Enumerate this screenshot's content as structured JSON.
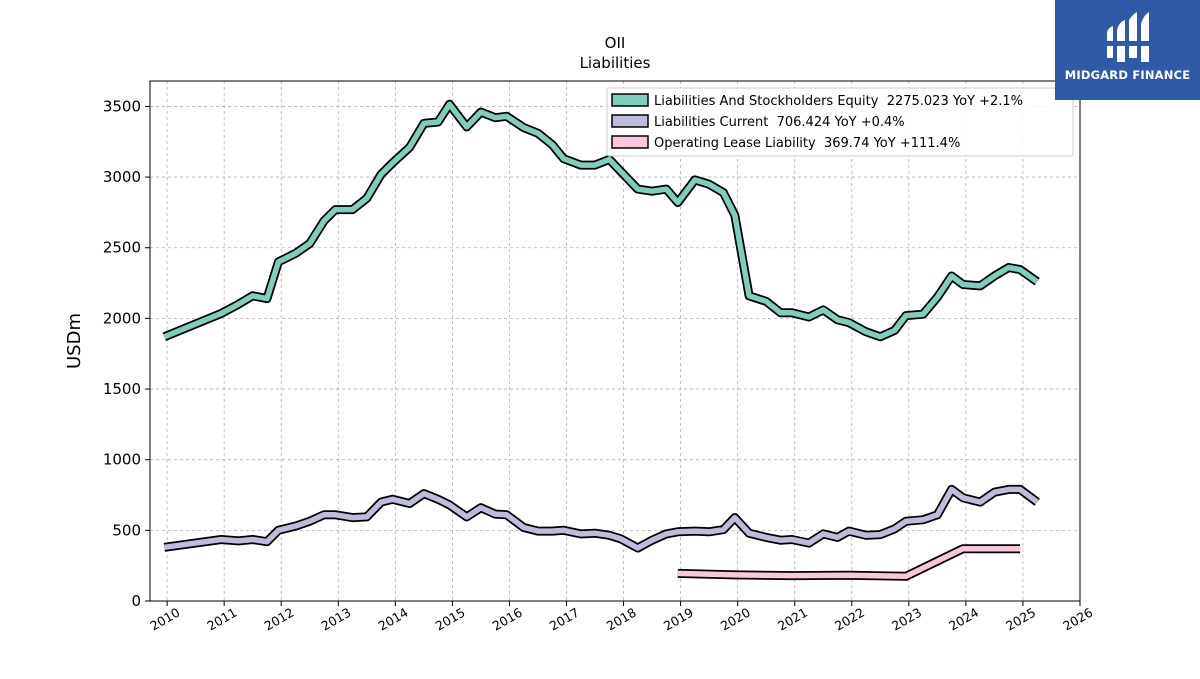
{
  "brand": {
    "name": "MIDGARD FINANCE",
    "logo_icon": "midgard-logo-icon",
    "logo_bg": "#2e5aa8"
  },
  "chart_data": {
    "type": "line",
    "title": "OII",
    "subtitle": "Liabilities",
    "ylabel": "USDm",
    "xlabel": "",
    "xlim": [
      2009.7,
      2026.0
    ],
    "ylim": [
      0,
      3680
    ],
    "x_ticks": [
      "2010",
      "2011",
      "2012",
      "2013",
      "2014",
      "2015",
      "2016",
      "2017",
      "2018",
      "2019",
      "2020",
      "2021",
      "2022",
      "2023",
      "2024",
      "2025",
      "2026"
    ],
    "y_ticks": [
      "0",
      "500",
      "1000",
      "1500",
      "2000",
      "2500",
      "3000",
      "3500"
    ],
    "grid": true,
    "legend_position": "top-right",
    "series": [
      {
        "name": "Liabilities And Stockholders Equity",
        "legend": "Liabilities And Stockholders Equity  2275.023 YoY +2.1%",
        "color": "#7fcdbb",
        "x": [
          2009.95,
          2010.95,
          2011.25,
          2011.5,
          2011.75,
          2011.95,
          2012.25,
          2012.5,
          2012.75,
          2012.95,
          2013.25,
          2013.5,
          2013.75,
          2013.95,
          2014.25,
          2014.5,
          2014.75,
          2014.95,
          2015.25,
          2015.5,
          2015.75,
          2015.95,
          2016.25,
          2016.5,
          2016.75,
          2016.95,
          2017.25,
          2017.5,
          2017.75,
          2017.95,
          2018.25,
          2018.5,
          2018.75,
          2018.95,
          2019.25,
          2019.5,
          2019.75,
          2019.95,
          2020.2,
          2020.5,
          2020.75,
          2020.95,
          2021.25,
          2021.5,
          2021.75,
          2021.95,
          2022.25,
          2022.5,
          2022.75,
          2022.95,
          2023.25,
          2023.5,
          2023.75,
          2023.95,
          2024.25,
          2024.5,
          2024.75,
          2024.95,
          2025.25
        ],
        "values": [
          1870,
          2035,
          2100,
          2160,
          2140,
          2400,
          2460,
          2530,
          2690,
          2770,
          2770,
          2850,
          3020,
          3100,
          3210,
          3380,
          3390,
          3515,
          3355,
          3460,
          3420,
          3430,
          3350,
          3310,
          3230,
          3130,
          3085,
          3085,
          3125,
          3040,
          2915,
          2900,
          2915,
          2820,
          2980,
          2950,
          2890,
          2730,
          2160,
          2120,
          2040,
          2040,
          2010,
          2060,
          1990,
          1970,
          1905,
          1870,
          1915,
          2020,
          2030,
          2150,
          2300,
          2240,
          2230,
          2300,
          2360,
          2345,
          2260
        ]
      },
      {
        "name": "Liabilities Current",
        "legend": "Liabilities Current  706.424 YoY +0.4%",
        "color": "#bcbddc",
        "x": [
          2009.95,
          2010.95,
          2011.25,
          2011.5,
          2011.75,
          2011.95,
          2012.25,
          2012.5,
          2012.75,
          2012.95,
          2013.25,
          2013.5,
          2013.75,
          2013.95,
          2014.25,
          2014.5,
          2014.75,
          2014.95,
          2015.25,
          2015.5,
          2015.75,
          2015.95,
          2016.25,
          2016.5,
          2016.75,
          2016.95,
          2017.25,
          2017.5,
          2017.75,
          2017.95,
          2018.25,
          2018.5,
          2018.75,
          2018.95,
          2019.25,
          2019.5,
          2019.75,
          2019.95,
          2020.2,
          2020.5,
          2020.75,
          2020.95,
          2021.25,
          2021.5,
          2021.75,
          2021.95,
          2022.25,
          2022.5,
          2022.75,
          2022.95,
          2023.25,
          2023.5,
          2023.75,
          2023.95,
          2024.25,
          2024.5,
          2024.75,
          2024.95,
          2025.25
        ],
        "values": [
          380,
          435,
          425,
          435,
          420,
          500,
          530,
          565,
          610,
          610,
          590,
          595,
          700,
          720,
          690,
          760,
          720,
          680,
          595,
          660,
          615,
          610,
          520,
          495,
          495,
          500,
          475,
          480,
          465,
          440,
          375,
          430,
          475,
          490,
          495,
          490,
          505,
          590,
          480,
          450,
          430,
          435,
          410,
          475,
          450,
          495,
          465,
          470,
          510,
          565,
          575,
          610,
          790,
          730,
          700,
          770,
          790,
          790,
          700
        ]
      },
      {
        "name": "Operating Lease Liability",
        "legend": "Operating Lease Liability  369.74 YoY +111.4%",
        "color": "#fcc5dc",
        "x": [
          2018.95,
          2019.95,
          2020.95,
          2021.95,
          2022.95,
          2023.95,
          2024.95
        ],
        "values": [
          195,
          185,
          180,
          182,
          175,
          370,
          370
        ]
      }
    ]
  }
}
